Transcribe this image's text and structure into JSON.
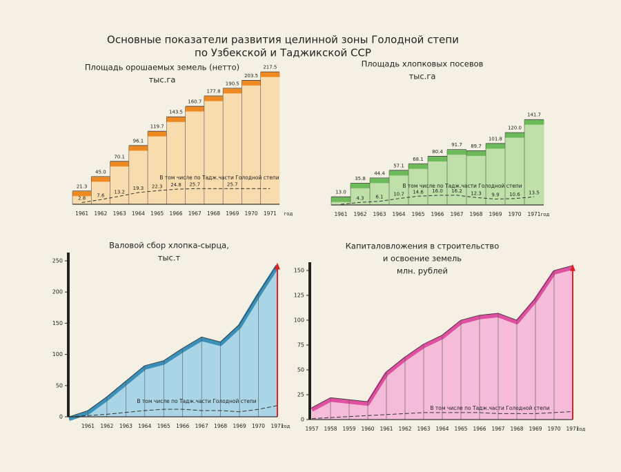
{
  "title": [
    "Основные показатели развития целинной зоны Голодной степи",
    "по Узбекской и Таджикской ССР"
  ],
  "chart_data": [
    {
      "type": "bar",
      "title": [
        "Площадь орошаемых земель (нетто)",
        "тыс.га"
      ],
      "x_label": "год",
      "categories": [
        "1961",
        "1962",
        "1963",
        "1964",
        "1965",
        "1966",
        "1967",
        "1968",
        "1969",
        "1970",
        "1971"
      ],
      "series": [
        {
          "color": "#f08a20",
          "fill": "#f9dcae",
          "values": [
            21.3,
            45.0,
            70.1,
            96.1,
            119.7,
            143.5,
            160.7,
            177.8,
            190.5,
            203.5,
            217.5
          ],
          "value_labels": [
            "21.3",
            "45.0",
            "70.1",
            "96.1",
            "119.7",
            "143.5",
            "160.7",
            "177.8",
            "190.5",
            "203.5",
            "217.5"
          ]
        },
        {
          "name": "В том числе по Тадж.части Голодной степи",
          "color": "#333333",
          "values": [
            2.8,
            7.6,
            13.2,
            19.3,
            22.3,
            24.8,
            25.7,
            25.7,
            25.7,
            25.7,
            25.7
          ],
          "value_labels": [
            "2.8",
            "7.6",
            "13.2",
            "19.3",
            "22.3",
            "24.8",
            "25.7",
            null,
            "25.7",
            null,
            null
          ]
        }
      ]
    },
    {
      "type": "bar",
      "title": [
        "Площадь хлопковых посевов",
        "тыс.га"
      ],
      "x_label": "год",
      "categories": [
        "1961",
        "1962",
        "1963",
        "1964",
        "1965",
        "1966",
        "1967",
        "1968",
        "1969",
        "1970",
        "1971"
      ],
      "series": [
        {
          "color": "#6cba5a",
          "fill": "#bfe0a8",
          "values": [
            13.0,
            35.8,
            44.4,
            57.1,
            68.1,
            80.4,
            91.7,
            89.7,
            101.8,
            120.0,
            141.7
          ],
          "value_labels": [
            "13.0",
            "35.8",
            "44.4",
            "57.1",
            "68.1",
            "80.4",
            "91.7",
            "89.7",
            "101.8",
            "120.0",
            "141.7"
          ]
        },
        {
          "name": "В том числе по Тадж.части Голодной степи",
          "color": "#333333",
          "values": [
            1,
            4.3,
            6.1,
            10.7,
            14.6,
            16.0,
            16.2,
            12.3,
            9.9,
            10.6,
            13.5
          ],
          "value_labels": [
            null,
            "4.3",
            "6.1",
            "10.7",
            "14.6",
            "16.0",
            "16.2",
            "12.3",
            "9.9",
            "10.6",
            "13.5"
          ]
        }
      ]
    },
    {
      "type": "area",
      "title": [
        "Валовой сбор хлопка-сырца,",
        "тыс.т"
      ],
      "x_label": "год",
      "categories": [
        null,
        "1961",
        "1962",
        "1963",
        "1964",
        "1965",
        "1966",
        "1967",
        "1968",
        "1969",
        "1970",
        "1971"
      ],
      "ylim": [
        0,
        250
      ],
      "yticks": [
        0,
        50,
        100,
        150,
        200,
        250
      ],
      "series": [
        {
          "color": "#3a90b8",
          "fill": "#a9d5e6",
          "values": [
            0,
            10,
            32,
            57,
            82,
            90,
            110,
            128,
            120,
            148,
            198,
            245
          ]
        },
        {
          "name": "В том числе по Тадж.части Голодной степи",
          "color": "#333333",
          "values": [
            0,
            2,
            4,
            7,
            10,
            12,
            12,
            10,
            10,
            8,
            12,
            18
          ]
        }
      ]
    },
    {
      "type": "area",
      "title": [
        "Капиталовложения в строительство",
        "и освоение земель",
        "млн. рублей"
      ],
      "x_label": "год",
      "categories": [
        "1957",
        "1958",
        "1959",
        "1960",
        "1961",
        "1962",
        "1963",
        "1964",
        "1965",
        "1966",
        "1967",
        "1968",
        "1969",
        "1970",
        "1971"
      ],
      "ylim": [
        0,
        150
      ],
      "yticks": [
        0,
        25,
        50,
        75,
        100,
        125,
        150
      ],
      "series": [
        {
          "color": "#e050a0",
          "fill": "#f5bcda",
          "values": [
            12,
            22,
            20,
            18,
            48,
            63,
            76,
            85,
            100,
            105,
            107,
            100,
            122,
            150,
            155
          ]
        },
        {
          "name": "В том числе по Тадж.части Голодной степи",
          "color": "#333333",
          "values": [
            1,
            2,
            3,
            4,
            5,
            6,
            7,
            7,
            7,
            7,
            6,
            6,
            6,
            7,
            8
          ]
        }
      ]
    }
  ]
}
